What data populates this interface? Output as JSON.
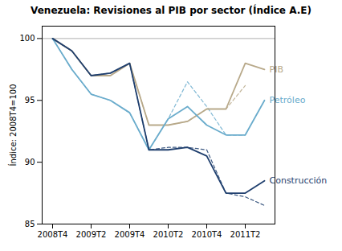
{
  "chart_data": {
    "type": "line",
    "title": "Venezuela: Revisiones al PIB por sector (Índice A.E)",
    "ylabel": "Índice: 2008T4=100",
    "categories": [
      "2008T4",
      null,
      "2009T2",
      null,
      "2009T4",
      null,
      "2010T2",
      null,
      "2010T4",
      null,
      "2011T2",
      null
    ],
    "ylim": [
      85,
      101
    ],
    "yticks": [
      85,
      90,
      95,
      100
    ],
    "grid": false,
    "reference_line": 100,
    "series": [
      {
        "color": "#b8a98a",
        "line_style": "dashed",
        "values": [
          100,
          99.0,
          97.0,
          97.0,
          98.0,
          93.0,
          93.0,
          93.3,
          94.3,
          94.3,
          96.2,
          null
        ]
      },
      {
        "color": "#6aaccc",
        "line_style": "dashed",
        "values": [
          100,
          97.5,
          95.5,
          95.0,
          94.0,
          91.0,
          93.5,
          96.5,
          94.5,
          92.2,
          92.2,
          null
        ]
      },
      {
        "color": "#1f3f6e",
        "line_style": "dashed",
        "values": [
          100,
          99.0,
          97.0,
          97.2,
          98.0,
          91.0,
          91.2,
          91.2,
          91.0,
          87.5,
          87.2,
          86.5
        ]
      },
      {
        "name": "PIB",
        "color": "#b8a98a",
        "line_style": "solid",
        "values": [
          100,
          99.0,
          97.0,
          97.0,
          98.0,
          93.0,
          93.0,
          93.3,
          94.3,
          94.3,
          98.0,
          97.5
        ]
      },
      {
        "name": "Petróleo",
        "color": "#6aaccc",
        "line_style": "solid",
        "values": [
          100,
          97.5,
          95.5,
          95.0,
          94.0,
          91.0,
          93.5,
          94.5,
          93.0,
          92.2,
          92.2,
          95.0
        ]
      },
      {
        "name": "Construcción",
        "color": "#1f3f6e",
        "line_style": "solid",
        "values": [
          100,
          99.0,
          97.0,
          97.2,
          98.0,
          91.0,
          91.0,
          91.2,
          90.5,
          87.5,
          87.5,
          88.5
        ]
      }
    ]
  }
}
